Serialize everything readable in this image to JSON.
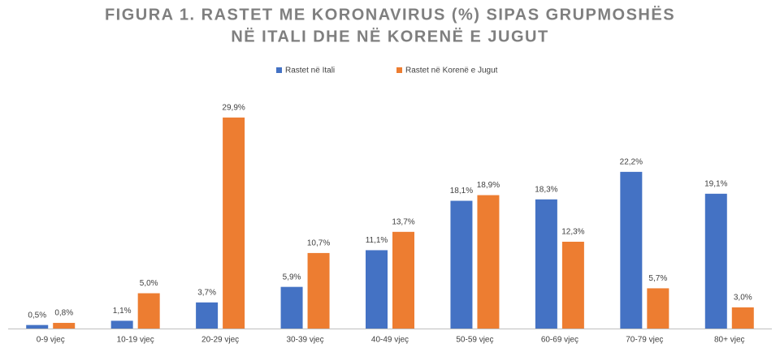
{
  "chart_data": {
    "type": "bar",
    "title": "FIGURA 1. RASTET ME KORONAVIRUS (%) SIPAS GRUPMOSHËS",
    "subtitle": "NË ITALI DHE NË KORENË E JUGUT",
    "categories": [
      "0-9 vjeç",
      "10-19 vjeç",
      "20-29 vjeç",
      "30-39 vjeç",
      "40-49 vjeç",
      "50-59 vjeç",
      "60-69 vjeç",
      "70-79 vjeç",
      "80+ vjeç"
    ],
    "series": [
      {
        "name": "Rastet në Itali",
        "color": "#4472c4",
        "values": [
          0.5,
          1.1,
          3.7,
          5.9,
          11.1,
          18.1,
          18.3,
          22.2,
          19.1
        ],
        "value_labels": [
          "0,5%",
          "1,1%",
          "3,7%",
          "5,9%",
          "11,1%",
          "18,1%",
          "18,3%",
          "22,2%",
          "19,1%"
        ]
      },
      {
        "name": "Rastet në Korenë e Jugut",
        "color": "#ed7d31",
        "values": [
          0.8,
          5.0,
          29.9,
          10.7,
          13.7,
          18.9,
          12.3,
          5.7,
          3.0
        ],
        "value_labels": [
          "0,8%",
          "5,0%",
          "29,9%",
          "10,7%",
          "13,7%",
          "18,9%",
          "12,3%",
          "5,7%",
          "3,0%"
        ]
      }
    ],
    "ylim": [
      0,
      30
    ],
    "legend": "top"
  }
}
